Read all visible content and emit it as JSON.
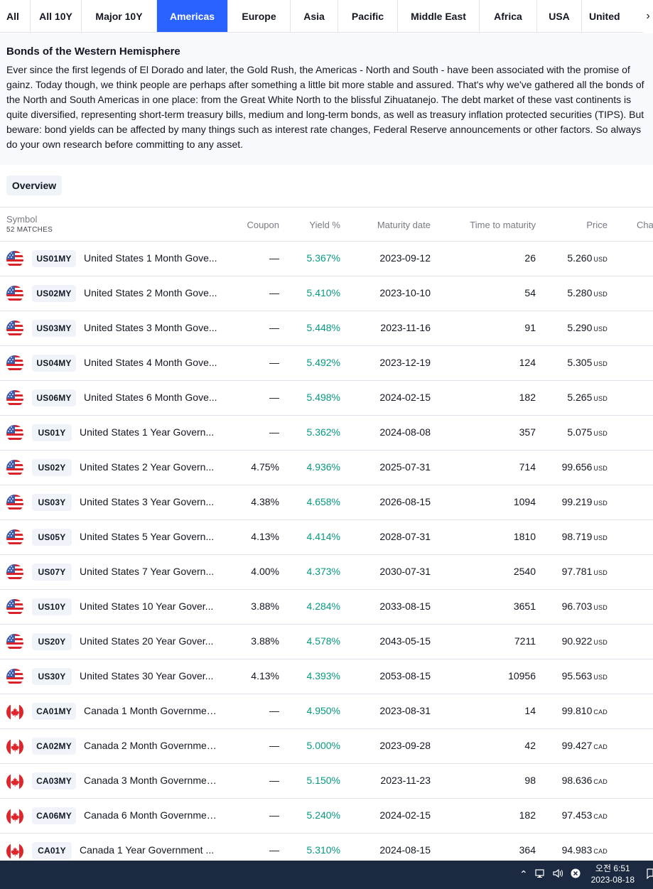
{
  "tabs": [
    {
      "label": "All",
      "active": false
    },
    {
      "label": "All 10Y",
      "active": false
    },
    {
      "label": "Major 10Y",
      "active": false
    },
    {
      "label": "Americas",
      "active": true
    },
    {
      "label": "Europe",
      "active": false
    },
    {
      "label": "Asia",
      "active": false
    },
    {
      "label": "Pacific",
      "active": false
    },
    {
      "label": "Middle East",
      "active": false
    },
    {
      "label": "Africa",
      "active": false
    },
    {
      "label": "USA",
      "active": false
    },
    {
      "label": "United",
      "active": false
    }
  ],
  "description": {
    "title": "Bonds of the Western Hemisphere",
    "body": "Ever since the first legends of El Dorado and later, the Gold Rush, the Americas - North and South - have been associated with the promise of gainz. Today though, we think people are perhaps after something a little bit more stable and assured. That's why we've gathered all the bonds of the North and South Americas in one place: from the Great White North to the blissful Zihuatanejo. The debt market of these vast continents is quite diversified, representing short-term treasury bills, medium and long-term bonds, as well as treasury inflation protected securities (TIPS). But beware: bond yields can be affected by many things such as interest rate changes, Federal Reserve announcements or other factors. So always do your own research before committing to any asset."
  },
  "overview_label": "Overview",
  "table": {
    "headers": {
      "symbol": "Symbol",
      "matches": "52 MATCHES",
      "coupon": "Coupon",
      "yield": "Yield %",
      "maturity": "Maturity date",
      "ttm": "Time to maturity",
      "price": "Price",
      "change": "Cha"
    },
    "rows": [
      {
        "flag": "us",
        "ticker": "US01MY",
        "name": "United States 1 Month Gove...",
        "coupon": "—",
        "yield": "5.367%",
        "maturity": "2023-09-12",
        "ttm": "26",
        "price": "5.260",
        "cur": "USD"
      },
      {
        "flag": "us",
        "ticker": "US02MY",
        "name": "United States 2 Month Gove...",
        "coupon": "—",
        "yield": "5.410%",
        "maturity": "2023-10-10",
        "ttm": "54",
        "price": "5.280",
        "cur": "USD"
      },
      {
        "flag": "us",
        "ticker": "US03MY",
        "name": "United States 3 Month Gove...",
        "coupon": "—",
        "yield": "5.448%",
        "maturity": "2023-11-16",
        "ttm": "91",
        "price": "5.290",
        "cur": "USD"
      },
      {
        "flag": "us",
        "ticker": "US04MY",
        "name": "United States 4 Month Gove...",
        "coupon": "—",
        "yield": "5.492%",
        "maturity": "2023-12-19",
        "ttm": "124",
        "price": "5.305",
        "cur": "USD"
      },
      {
        "flag": "us",
        "ticker": "US06MY",
        "name": "United States 6 Month Gove...",
        "coupon": "—",
        "yield": "5.498%",
        "maturity": "2024-02-15",
        "ttm": "182",
        "price": "5.265",
        "cur": "USD"
      },
      {
        "flag": "us",
        "ticker": "US01Y",
        "name": "United States 1 Year Govern...",
        "coupon": "—",
        "yield": "5.362%",
        "maturity": "2024-08-08",
        "ttm": "357",
        "price": "5.075",
        "cur": "USD"
      },
      {
        "flag": "us",
        "ticker": "US02Y",
        "name": "United States 2 Year Govern...",
        "coupon": "4.75%",
        "yield": "4.936%",
        "maturity": "2025-07-31",
        "ttm": "714",
        "price": "99.656",
        "cur": "USD"
      },
      {
        "flag": "us",
        "ticker": "US03Y",
        "name": "United States 3 Year Govern...",
        "coupon": "4.38%",
        "yield": "4.658%",
        "maturity": "2026-08-15",
        "ttm": "1094",
        "price": "99.219",
        "cur": "USD"
      },
      {
        "flag": "us",
        "ticker": "US05Y",
        "name": "United States 5 Year Govern...",
        "coupon": "4.13%",
        "yield": "4.414%",
        "maturity": "2028-07-31",
        "ttm": "1810",
        "price": "98.719",
        "cur": "USD"
      },
      {
        "flag": "us",
        "ticker": "US07Y",
        "name": "United States 7 Year Govern...",
        "coupon": "4.00%",
        "yield": "4.373%",
        "maturity": "2030-07-31",
        "ttm": "2540",
        "price": "97.781",
        "cur": "USD"
      },
      {
        "flag": "us",
        "ticker": "US10Y",
        "name": "United States 10 Year Gover...",
        "coupon": "3.88%",
        "yield": "4.284%",
        "maturity": "2033-08-15",
        "ttm": "3651",
        "price": "96.703",
        "cur": "USD"
      },
      {
        "flag": "us",
        "ticker": "US20Y",
        "name": "United States 20 Year Gover...",
        "coupon": "3.88%",
        "yield": "4.578%",
        "maturity": "2043-05-15",
        "ttm": "7211",
        "price": "90.922",
        "cur": "USD"
      },
      {
        "flag": "us",
        "ticker": "US30Y",
        "name": "United States 30 Year Gover...",
        "coupon": "4.13%",
        "yield": "4.393%",
        "maturity": "2053-08-15",
        "ttm": "10956",
        "price": "95.563",
        "cur": "USD"
      },
      {
        "flag": "ca",
        "ticker": "CA01MY",
        "name": "Canada 1 Month Governmen...",
        "coupon": "—",
        "yield": "4.950%",
        "maturity": "2023-08-31",
        "ttm": "14",
        "price": "99.810",
        "cur": "CAD"
      },
      {
        "flag": "ca",
        "ticker": "CA02MY",
        "name": "Canada 2 Month Governmen...",
        "coupon": "—",
        "yield": "5.000%",
        "maturity": "2023-09-28",
        "ttm": "42",
        "price": "99.427",
        "cur": "CAD"
      },
      {
        "flag": "ca",
        "ticker": "CA03MY",
        "name": "Canada 3 Month Governmen...",
        "coupon": "—",
        "yield": "5.150%",
        "maturity": "2023-11-23",
        "ttm": "98",
        "price": "98.636",
        "cur": "CAD"
      },
      {
        "flag": "ca",
        "ticker": "CA06MY",
        "name": "Canada 6 Month Governmen...",
        "coupon": "—",
        "yield": "5.240%",
        "maturity": "2024-02-15",
        "ttm": "182",
        "price": "97.453",
        "cur": "CAD"
      },
      {
        "flag": "ca",
        "ticker": "CA01Y",
        "name": "Canada 1 Year Government ...",
        "coupon": "—",
        "yield": "5.310%",
        "maturity": "2024-08-15",
        "ttm": "364",
        "price": "94.983",
        "cur": "CAD"
      }
    ]
  },
  "taskbar": {
    "time": "오전 6:51",
    "date": "2023-08-18"
  },
  "colors": {
    "accent": "#2962ff",
    "yield_green": "#089981",
    "taskbar": "#1b2a40"
  }
}
